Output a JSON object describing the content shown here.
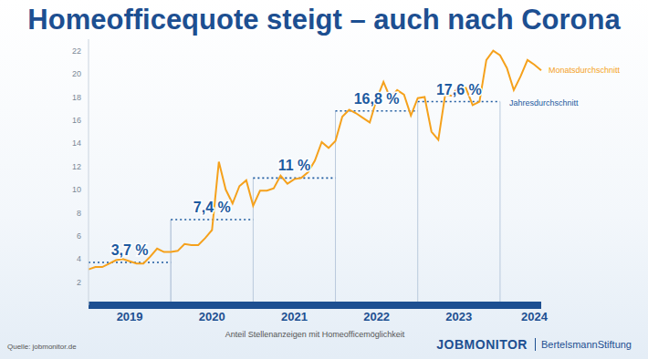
{
  "chart_data": {
    "type": "line",
    "title": "Homeofficequote steigt – auch nach Corona",
    "x_label": "Anteil Stellenanzeigen mit Homeofficemöglichkeit",
    "categories": [
      null,
      null,
      null,
      null,
      null,
      null,
      "2019",
      null,
      null,
      null,
      null,
      null,
      null,
      null,
      null,
      null,
      null,
      null,
      "2020",
      null,
      null,
      null,
      null,
      null,
      null,
      null,
      null,
      null,
      null,
      null,
      "2021",
      null,
      null,
      null,
      null,
      null,
      null,
      null,
      null,
      null,
      null,
      null,
      "2022",
      null,
      null,
      null,
      null,
      null,
      null,
      null,
      null,
      null,
      null,
      null,
      "2023",
      null,
      null,
      null,
      null,
      null,
      null,
      null,
      null,
      null,
      null,
      "2024",
      null
    ],
    "series": [
      {
        "name": "Monatsdurchschnitt",
        "color": "#f5a11c",
        "values": [
          3.1,
          3.3,
          3.3,
          3.6,
          3.9,
          4.0,
          3.8,
          3.6,
          3.6,
          4.2,
          4.9,
          4.6,
          4.6,
          4.7,
          5.3,
          5.2,
          5.2,
          5.8,
          6.5,
          12.4,
          10.0,
          8.8,
          10.3,
          10.8,
          8.6,
          9.9,
          9.9,
          10.1,
          11.2,
          10.5,
          10.9,
          11.0,
          11.5,
          12.5,
          14.1,
          13.6,
          14.2,
          16.3,
          16.9,
          16.6,
          16.2,
          15.8,
          17.8,
          19.3,
          17.9,
          18.6,
          18.2,
          16.4,
          17.9,
          18.0,
          15.0,
          14.3,
          18.2,
          18.1,
          19.0,
          18.8,
          17.3,
          17.6,
          21.2,
          22.0,
          21.6,
          20.5,
          18.6,
          19.8,
          21.2,
          20.8,
          20.3
        ]
      }
    ],
    "annual_averages": {
      "name": "Jahresdurchschnitt",
      "color": "#1d5aa0",
      "line_style": "dotted",
      "years": [
        "2019",
        "2020",
        "2021",
        "2022",
        "2023"
      ],
      "values": [
        3.7,
        7.4,
        11,
        16.8,
        17.6
      ],
      "value_labels": [
        "3,7 %",
        "7,4 %",
        "11 %",
        "16,8 %",
        "17,6 %"
      ]
    },
    "ylim": [
      0,
      23
    ],
    "yticks": [
      2,
      4,
      6,
      8,
      10,
      12,
      14,
      16,
      18,
      20,
      22
    ],
    "grid": false,
    "source": "Quelle: jobmonitor.de",
    "branding": [
      "JOBMONITOR",
      "BertelsmannStiftung"
    ]
  }
}
